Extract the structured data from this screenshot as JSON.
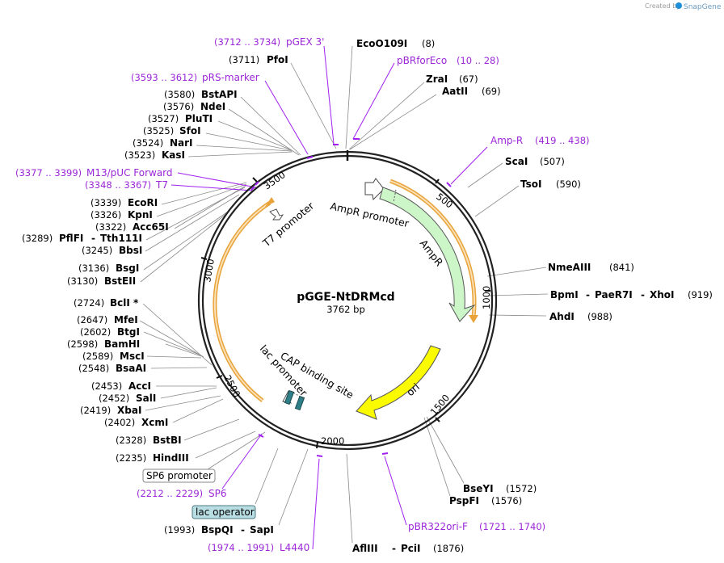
{
  "app": {
    "credit": "Created by",
    "brand": "SnapGene"
  },
  "map": {
    "name": "pGGE-NtDRMcd",
    "size": "3762 bp"
  },
  "ticks": [
    "500",
    "1000",
    "1500",
    "2000",
    "2500",
    "3000",
    "3500"
  ],
  "features": {
    "ampr_promoter": "AmpR promoter",
    "ampr": "AmpR",
    "ori": "ori",
    "t7_promoter": "T7 promoter",
    "cap": "CAP binding site",
    "lac_promoter": "lac promoter",
    "sp6_promoter": "SP6 promoter",
    "lac_operator": "lac operator"
  },
  "sites": {
    "eco0109i": {
      "name": "EcoO109I",
      "pos": "(8)"
    },
    "zrai": {
      "name": "ZraI",
      "pos": "(67)"
    },
    "aatii": {
      "name": "AatII",
      "pos": "(69)"
    },
    "scai": {
      "name": "ScaI",
      "pos": "(507)"
    },
    "tsoi": {
      "name": "TsoI",
      "pos": "(590)"
    },
    "nmeaiii": {
      "name": "NmeAIII",
      "pos": "(841)"
    },
    "bpmi": {
      "name": "BpmI",
      "sep1": "-",
      "name2": "PaeR7I",
      "sep2": "-",
      "name3": "XhoI",
      "pos": "(919)"
    },
    "ahdi": {
      "name": "AhdI",
      "pos": "(988)"
    },
    "bseyi": {
      "name": "BseYI",
      "pos": "(1572)"
    },
    "pspfi": {
      "name": "PspFI",
      "pos": "(1576)"
    },
    "afliii": {
      "name": "AflIII",
      "sep": "-",
      "name2": "PciI",
      "pos": "(1876)"
    },
    "bspqi": {
      "name": "BspQI",
      "sep": "-",
      "name2": "SapI",
      "pos": "(1993)"
    },
    "hindiii": {
      "name": "HindIII",
      "pos": "(2235)"
    },
    "bstbi": {
      "name": "BstBI",
      "pos": "(2328)"
    },
    "xcmi": {
      "name": "XcmI",
      "pos": "(2402)"
    },
    "xbai": {
      "name": "XbaI",
      "pos": "(2419)"
    },
    "sali": {
      "name": "SalI",
      "pos": "(2452)"
    },
    "acci": {
      "name": "AccI",
      "pos": "(2453)"
    },
    "bsaai": {
      "name": "BsaAI",
      "pos": "(2548)"
    },
    "msci": {
      "name": "MscI",
      "pos": "(2589)"
    },
    "bamhi": {
      "name": "BamHI",
      "pos": "(2598)"
    },
    "btgi": {
      "name": "BtgI",
      "pos": "(2602)"
    },
    "mfei": {
      "name": "MfeI",
      "pos": "(2647)"
    },
    "bcli": {
      "name": "BclI *",
      "pos": "(2724)"
    },
    "bsteii": {
      "name": "BstEII",
      "pos": "(3130)"
    },
    "bsgi": {
      "name": "BsgI",
      "pos": "(3136)"
    },
    "bbsi": {
      "name": "BbsI",
      "pos": "(3245)"
    },
    "pflfi": {
      "name": "PflFI",
      "sep": "-",
      "name2": "Tth111I",
      "pos": "(3289)"
    },
    "acc65i": {
      "name": "Acc65I",
      "pos": "(3322)"
    },
    "kpni": {
      "name": "KpnI",
      "pos": "(3326)"
    },
    "ecori": {
      "name": "EcoRI",
      "pos": "(3339)"
    },
    "kasi": {
      "name": "KasI",
      "pos": "(3523)"
    },
    "nari": {
      "name": "NarI",
      "pos": "(3524)"
    },
    "sfoi": {
      "name": "SfoI",
      "pos": "(3525)"
    },
    "pluti": {
      "name": "PluTI",
      "pos": "(3527)"
    },
    "ndei": {
      "name": "NdeI",
      "pos": "(3576)"
    },
    "bstapi": {
      "name": "BstAPI",
      "pos": "(3580)"
    },
    "pfoi": {
      "name": "PfoI",
      "pos": "(3711)"
    }
  },
  "primers": {
    "pgex3": {
      "range": "(3712 .. 3734)",
      "name": "pGEX 3'"
    },
    "pbrforeco": {
      "name": "pBRforEco",
      "range": "(10 .. 28)"
    },
    "prs": {
      "range": "(3593 .. 3612)",
      "name": "pRS-marker"
    },
    "ampr": {
      "name": "Amp-R",
      "range": "(419 .. 438)"
    },
    "m13": {
      "range": "(3377 .. 3399)",
      "name": "M13/pUC Forward"
    },
    "t7": {
      "range": "(3348 .. 3367)",
      "name": "T7"
    },
    "sp6": {
      "range": "(2212 .. 2229)",
      "name": "SP6"
    },
    "l4440": {
      "range": "(1974 .. 1991)",
      "name": "L4440"
    },
    "pbr322": {
      "name": "pBR322ori-F",
      "range": "(1721 .. 1740)"
    }
  }
}
